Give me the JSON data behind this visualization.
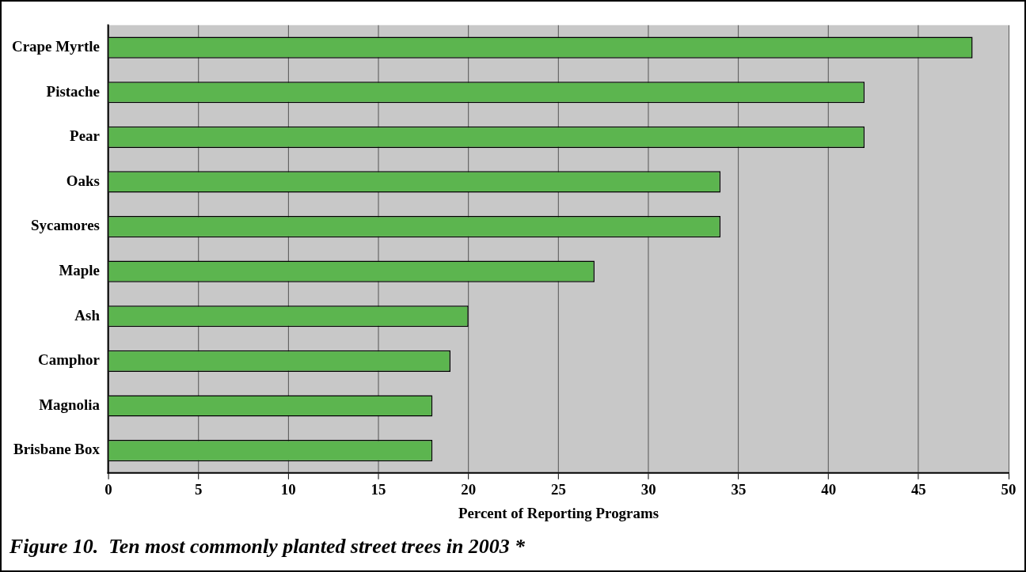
{
  "chart_data": {
    "type": "bar",
    "orientation": "horizontal",
    "title": "Figure 10.  Ten most commonly planted street trees in 2003 *",
    "xlabel": "Percent of Reporting Programs",
    "categories": [
      "Crape Myrtle",
      "Pistache",
      "Pear",
      "Oaks",
      "Sycamores",
      "Maple",
      "Ash",
      "Camphor",
      "Magnolia",
      "Brisbane Box"
    ],
    "values": [
      48,
      42,
      42,
      34,
      34,
      27,
      20,
      19,
      18,
      18
    ],
    "color": "#5cb54f",
    "xlim": [
      0,
      50
    ],
    "xticks": [
      0,
      5,
      10,
      15,
      20,
      25,
      30,
      35,
      40,
      45,
      50
    ],
    "grid": "x",
    "legend": false
  }
}
